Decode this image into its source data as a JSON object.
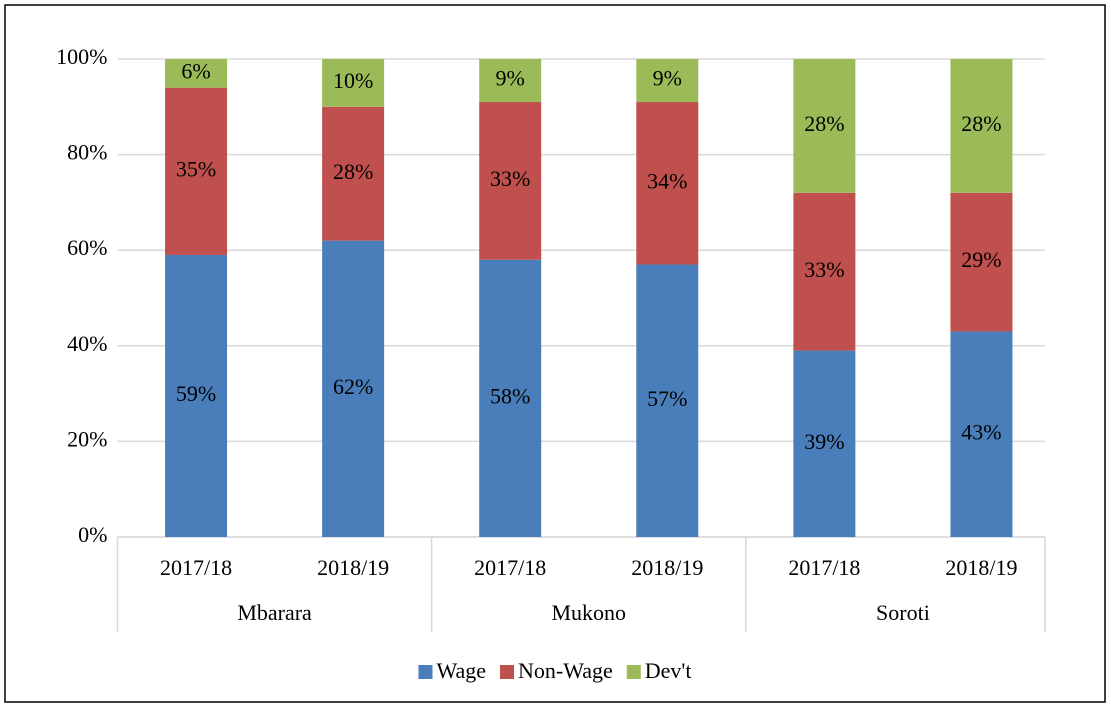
{
  "chart_data": {
    "type": "stacked_bar",
    "groups": [
      {
        "label": "Mbarara",
        "categories": [
          "2017/18",
          "2018/19"
        ]
      },
      {
        "label": "Mukono",
        "categories": [
          "2017/18",
          "2018/19"
        ]
      },
      {
        "label": "Soroti",
        "categories": [
          "2017/18",
          "2018/19"
        ]
      }
    ],
    "series": [
      {
        "name": "Wage",
        "color": "#4a7ebb",
        "values": [
          59,
          62,
          58,
          57,
          39,
          43
        ],
        "value_labels": [
          "59%",
          "62%",
          "58%",
          "57%",
          "39%",
          "43%"
        ]
      },
      {
        "name": "Non-Wage",
        "color": "#c0504d",
        "values": [
          35,
          28,
          33,
          34,
          33,
          29
        ],
        "value_labels": [
          "35%",
          "28%",
          "33%",
          "34%",
          "33%",
          "29%"
        ]
      },
      {
        "name": "Dev't",
        "color": "#9bbb59",
        "values": [
          6,
          10,
          9,
          9,
          28,
          28
        ],
        "value_labels": [
          "6%",
          "10%",
          "9%",
          "9%",
          "28%",
          "28%"
        ]
      }
    ],
    "ylim": [
      0,
      100
    ],
    "yticks": [
      {
        "value": 0,
        "label": "0%"
      },
      {
        "value": 20,
        "label": "20%"
      },
      {
        "value": 40,
        "label": "40%"
      },
      {
        "value": 60,
        "label": "60%"
      },
      {
        "value": 80,
        "label": "80%"
      },
      {
        "value": 100,
        "label": "100%"
      }
    ],
    "grid": true,
    "legend": "bottom"
  }
}
